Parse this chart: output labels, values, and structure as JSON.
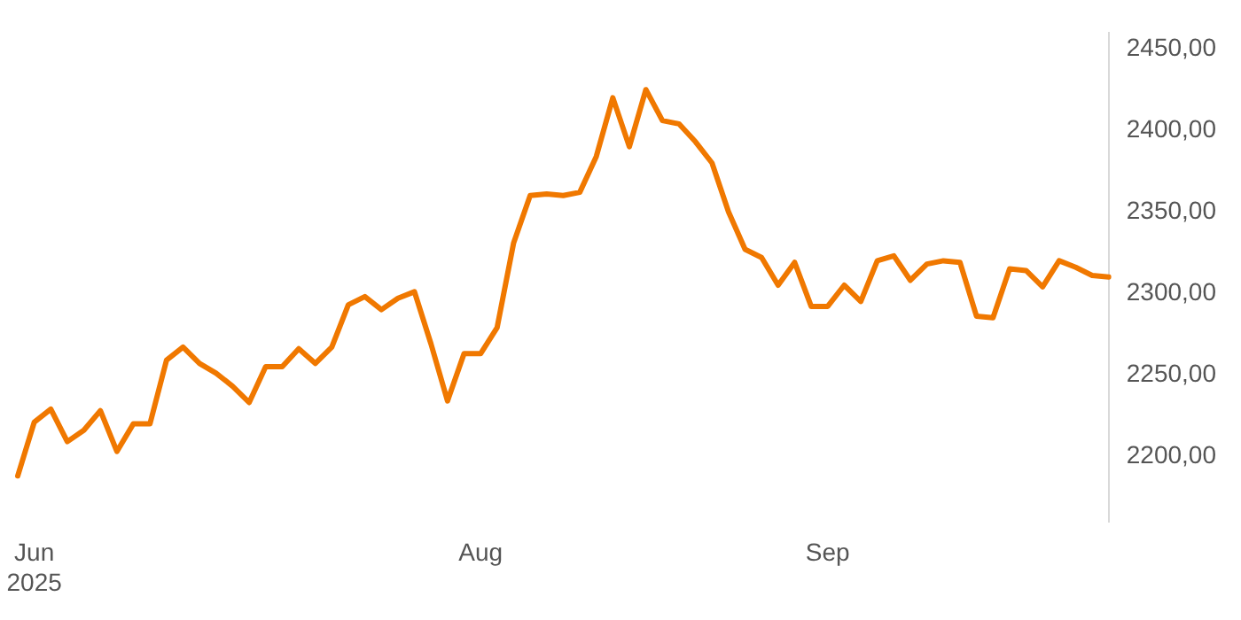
{
  "chart_data": {
    "type": "line",
    "categories": [
      null,
      "Jun 2025",
      null,
      null,
      null,
      null,
      null,
      null,
      null,
      null,
      null,
      null,
      null,
      null,
      null,
      null,
      null,
      null,
      null,
      null,
      null,
      null,
      null,
      null,
      null,
      null,
      null,
      null,
      "Aug",
      null,
      null,
      null,
      null,
      null,
      null,
      null,
      null,
      null,
      null,
      null,
      null,
      null,
      null,
      null,
      null,
      null,
      null,
      null,
      null,
      "Sep",
      null,
      null,
      null,
      null,
      null,
      null,
      null,
      null,
      null,
      null,
      null,
      null,
      null,
      null,
      null,
      null,
      null
    ],
    "series": [
      {
        "color": "#f07800",
        "values": [
          2188,
          2221,
          2229,
          2209,
          2216,
          2228,
          2203,
          2220,
          2220,
          2259,
          2267,
          2257,
          2251,
          2243,
          2233,
          2255,
          2255,
          2266,
          2257,
          2267,
          2293,
          2298,
          2290,
          2297,
          2301,
          2269,
          2234,
          2263,
          2263,
          2279,
          2331,
          2360,
          2361,
          2360,
          2362,
          2384,
          2420,
          2390,
          2425,
          2406,
          2404,
          2393,
          2380,
          2350,
          2327,
          2322,
          2305,
          2319,
          2292,
          2292,
          2305,
          2295,
          2320,
          2323,
          2308,
          2318,
          2320,
          2319,
          2286,
          2285,
          2315,
          2314,
          2304,
          2320,
          2316,
          2311,
          2310
        ]
      }
    ],
    "ylim": [
      2160,
      2460
    ],
    "yticks": [
      {
        "value": 2200,
        "label": "2200,00"
      },
      {
        "value": 2250,
        "label": "2250,00"
      },
      {
        "value": 2300,
        "label": "2300,00"
      },
      {
        "value": 2350,
        "label": "2350,00"
      },
      {
        "value": 2400,
        "label": "2400,00"
      },
      {
        "value": 2450,
        "label": "2450,00"
      }
    ],
    "grid": false,
    "legend": false,
    "marker": "none",
    "line_style": "solid"
  }
}
